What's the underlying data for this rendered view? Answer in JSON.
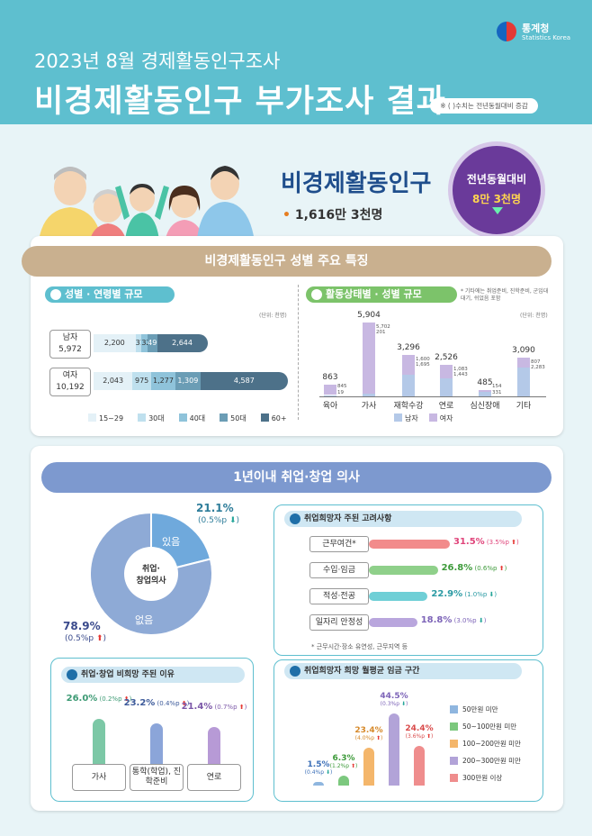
{
  "logo": {
    "name": "통계청",
    "sub": "Statistics Korea"
  },
  "header": {
    "subtitle": "2023년 8월 경제활동인구조사",
    "title": "비경제활동인구 부가조사 결과",
    "note": "※ ( )수치는 전년동월대비 증감"
  },
  "summary": {
    "label": "비경제활동인구",
    "value": "1,616만 3천명",
    "badge_label": "전년동월대비",
    "badge_value": "8만 3천명",
    "badge_direction": "down"
  },
  "section1": {
    "banner": "비경제활동인구 성별 주요 특징",
    "left": {
      "pill": "성별 · 연령별 규모",
      "unit": "(단위: 천명)",
      "rows": [
        {
          "label": "남자",
          "total": "5,972",
          "values": [
            2200,
            318,
            321,
            490,
            2644
          ],
          "labels": [
            "2,200",
            "318",
            "321",
            "490",
            "2,644"
          ]
        },
        {
          "label": "여자",
          "total": "10,192",
          "values": [
            2043,
            975,
            1277,
            1309,
            4587
          ],
          "labels": [
            "2,043",
            "975",
            "1,277",
            "1,309",
            "4,587"
          ]
        }
      ],
      "legend": [
        "15~29",
        "30대",
        "40대",
        "50대",
        "60+"
      ],
      "colors": [
        "#e4f1f7",
        "#bfe0ee",
        "#8fc3da",
        "#6b9db5",
        "#4d7189"
      ]
    },
    "right": {
      "pill": "활동상태별 · 성별 규모",
      "note": "* 기타에는 취업준비, 진학준비, 군입대대기, 쉬었음 포함",
      "unit": "(단위: 천명)",
      "legend": [
        "남자",
        "여자"
      ],
      "colors": {
        "male": "#b4c9e8",
        "female": "#c8b8e2"
      }
    }
  },
  "chart_data": {
    "type": "bar",
    "categories": [
      "육아",
      "가사",
      "재학수강",
      "연로",
      "심신장애",
      "기타"
    ],
    "totals": [
      863,
      5904,
      3296,
      2526,
      485,
      3090
    ],
    "total_labels": [
      "863",
      "5,904",
      "3,296",
      "2,526",
      "485",
      "3,090"
    ],
    "series": [
      {
        "name": "남자",
        "values": [
          19,
          201,
          1695,
          1443,
          331,
          2283
        ],
        "labels": [
          "19",
          "201",
          "1,695",
          "1,443",
          "331",
          "2,283"
        ]
      },
      {
        "name": "여자",
        "values": [
          845,
          5702,
          1600,
          1083,
          154,
          807
        ],
        "labels": [
          "845",
          "5,702",
          "1,600",
          "1,083",
          "154",
          "807"
        ]
      }
    ]
  },
  "section2": {
    "banner": "1년이내 취업·창업 의사",
    "donut": {
      "center": [
        "취업·",
        "창업의사"
      ],
      "yes": {
        "label": "있음",
        "pct": "21.1%",
        "change": "(0.5%p",
        "value": 21.1,
        "color": "#6fa9dc"
      },
      "no": {
        "label": "없음",
        "pct": "78.9%",
        "change": "(0.5%p",
        "value": 78.9,
        "color": "#8eaad6"
      }
    },
    "considerations": {
      "title": "취업희망자 주된 고려사항",
      "items": [
        {
          "label": "근무여건*",
          "pct": "31.5%",
          "change": "(3.5%p",
          "value": 31.5,
          "color": "#f28b8b",
          "text_color": "#e0457b"
        },
        {
          "label": "수입·임금",
          "pct": "26.8%",
          "change": "(0.6%p",
          "value": 26.8,
          "color": "#8fd08a",
          "text_color": "#3d9a3a"
        },
        {
          "label": "적성·전공",
          "pct": "22.9%",
          "change": "(1.0%p",
          "value": 22.9,
          "color": "#6fcfd6",
          "text_color": "#2a9aa3"
        },
        {
          "label": "일자리 안정성",
          "pct": "18.8%",
          "change": "(3.0%p",
          "value": 18.8,
          "color": "#b9a6dd",
          "text_color": "#7d64b8"
        }
      ],
      "note": "* 근무시간·장소 유연성, 근무지역 등"
    },
    "reasons": {
      "title": "취업·창업 비희망 주된 이유",
      "items": [
        {
          "label": "가사",
          "pct": "26.0%",
          "change": "(0.2%p",
          "value": 26.0,
          "color": "#7cc8a6",
          "text_color": "#3d9a74"
        },
        {
          "label": "통학(학업), 진학준비",
          "pct": "23.2%",
          "change": "(0.4%p",
          "value": 23.2,
          "color": "#8ba5d9",
          "text_color": "#3d5a9a"
        },
        {
          "label": "연로",
          "pct": "21.4%",
          "change": "(0.7%p",
          "value": 21.4,
          "color": "#b79ad6",
          "text_color": "#7c58a8"
        }
      ]
    },
    "wage": {
      "title": "취업희망자 희망 월평균 임금 구간",
      "items": [
        {
          "label": "50만원 미만",
          "pct": "1.5%",
          "change": "(0.4%p",
          "value": 1.5,
          "color": "#8fb6df"
        },
        {
          "label": "50~100만원 미만",
          "pct": "6.3%",
          "change": "(1.2%p",
          "value": 6.3,
          "color": "#7cc87e"
        },
        {
          "label": "100~200만원 미만",
          "pct": "23.4%",
          "change": "(4.0%p",
          "value": 23.4,
          "color": "#f4b66b"
        },
        {
          "label": "200~300만원 미만",
          "pct": "44.5%",
          "change": "(0.3%p",
          "value": 44.5,
          "color": "#b2a3d8"
        },
        {
          "label": "300만원 이상",
          "pct": "24.4%",
          "change": "(3.6%p",
          "value": 24.4,
          "color": "#ef8d8d"
        }
      ],
      "text_colors": [
        "#3d70b8",
        "#3d9a3a",
        "#d6892a",
        "#7d64b8",
        "#d94a4a"
      ]
    }
  }
}
